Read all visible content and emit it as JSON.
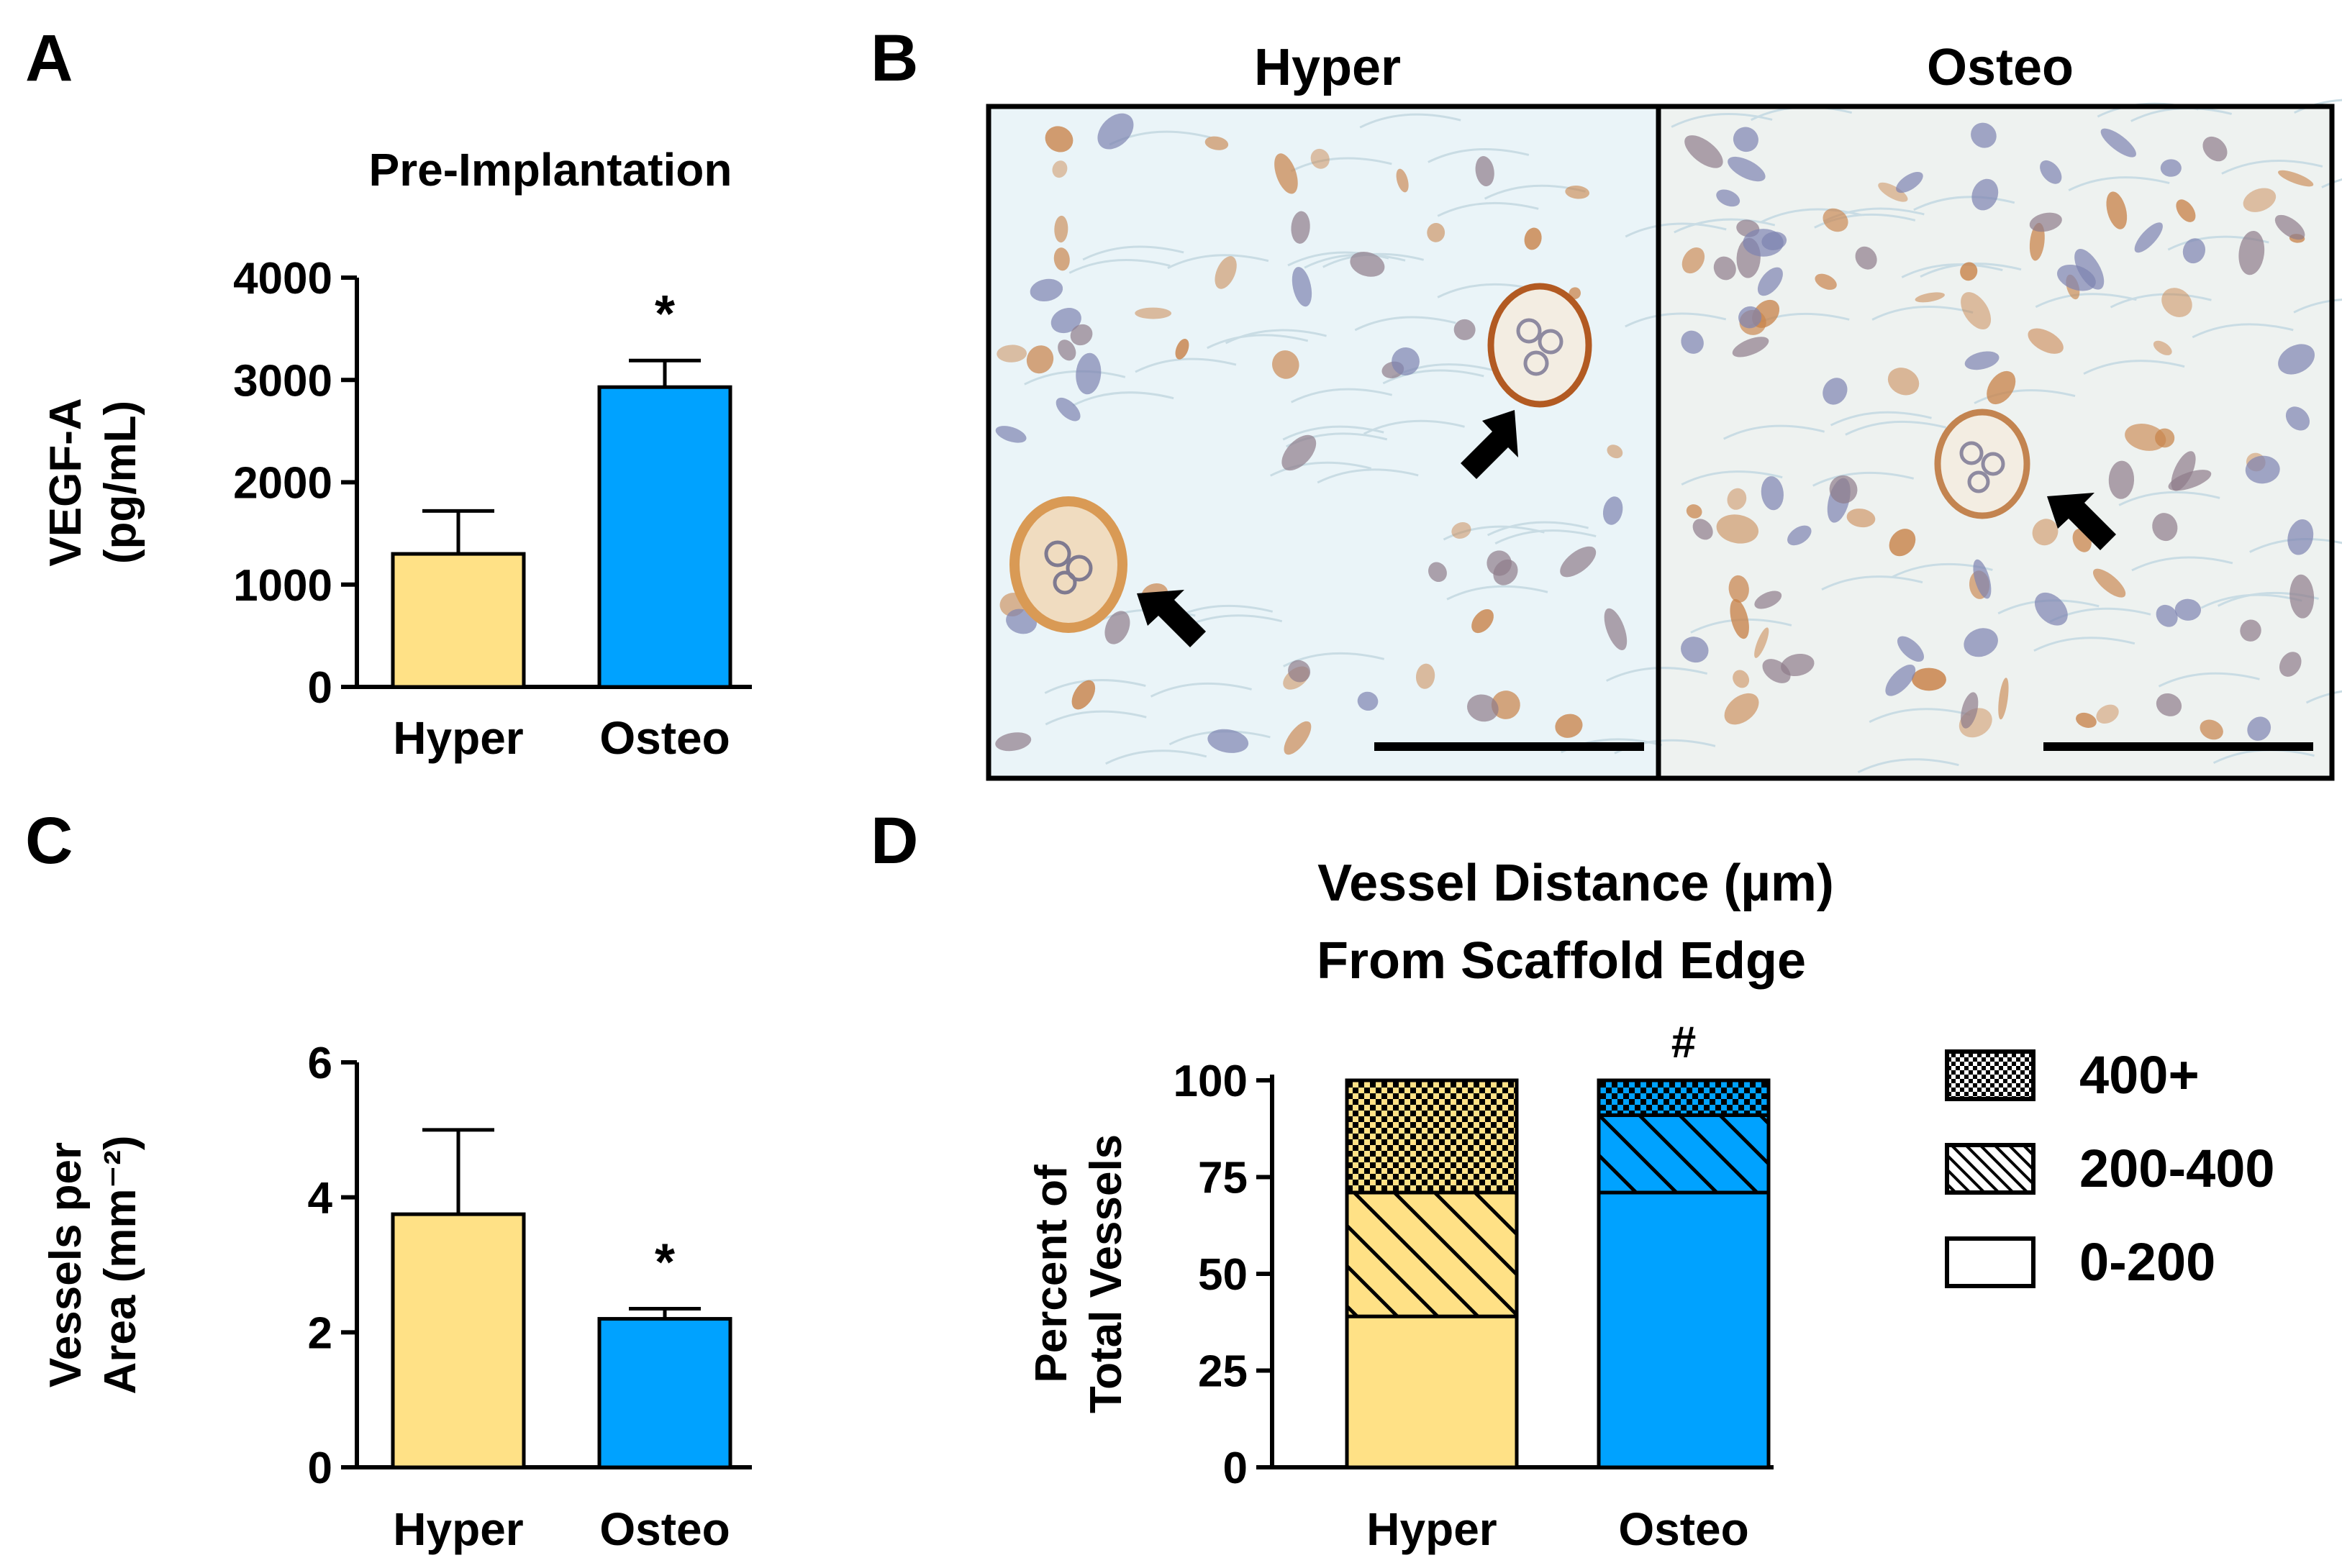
{
  "panels": {
    "A": "A",
    "B": "B",
    "C": "C",
    "D": "D"
  },
  "colors": {
    "hyper": "#FFE186",
    "osteo": "#00A2FF",
    "tissue_bg": "#EAF4F8",
    "stain_brown": "#B8743A",
    "nucleus": "#6F78A8"
  },
  "chart_data": [
    {
      "id": "A",
      "type": "bar",
      "title": "Pre-Implantation",
      "ylabel_line1": "VEGF-A",
      "ylabel_line2": "(pg/mL)",
      "categories": [
        "Hyper",
        "Osteo"
      ],
      "values": [
        1300,
        2930
      ],
      "errors": [
        420,
        260
      ],
      "ylim": [
        0,
        4000
      ],
      "yticks": [
        0,
        1000,
        2000,
        3000,
        4000
      ],
      "annotations": [
        "",
        "*"
      ]
    },
    {
      "id": "C",
      "type": "bar",
      "title": "",
      "ylabel_line1": "Vessels per",
      "ylabel_line2": "Area (mm⁻²)",
      "categories": [
        "Hyper",
        "Osteo"
      ],
      "values": [
        3.75,
        2.2
      ],
      "errors": [
        1.25,
        0.15
      ],
      "ylim": [
        0,
        6
      ],
      "yticks": [
        0,
        2,
        4,
        6
      ],
      "annotations": [
        "",
        "*"
      ]
    },
    {
      "id": "D",
      "type": "bar",
      "stacked": true,
      "title_line1": "Vessel Distance (µm)",
      "title_line2": "From Scaffold Edge",
      "ylabel_line1": "Percent of",
      "ylabel_line2": "Total Vessels",
      "categories": [
        "Hyper",
        "Osteo"
      ],
      "series": [
        {
          "name": "0-200",
          "values": [
            39,
            71
          ],
          "pattern": "solid"
        },
        {
          "name": "200-400",
          "values": [
            32,
            20
          ],
          "pattern": "hatch"
        },
        {
          "name": "400+",
          "values": [
            29,
            9
          ],
          "pattern": "checker"
        }
      ],
      "ylim": [
        0,
        100
      ],
      "yticks": [
        0,
        25,
        50,
        75,
        100
      ],
      "annotations": [
        "",
        "#"
      ],
      "legend_position": "right"
    }
  ],
  "micrographs": {
    "labels": [
      "Hyper",
      "Osteo"
    ]
  }
}
